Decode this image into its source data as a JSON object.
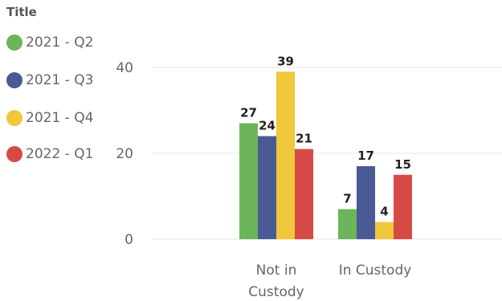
{
  "chart_data": {
    "type": "bar",
    "legend_title": "Title",
    "legend_position": "left",
    "categories": [
      [
        "Not in",
        "Custody"
      ],
      [
        "In Custody"
      ]
    ],
    "series": [
      {
        "name": "2021 - Q2",
        "color": "#6bb55a",
        "values": [
          27,
          7
        ]
      },
      {
        "name": "2021 - Q3",
        "color": "#4a5a94",
        "values": [
          24,
          17
        ]
      },
      {
        "name": "2021 - Q4",
        "color": "#f1c73b",
        "values": [
          39,
          4
        ]
      },
      {
        "name": "2022 - Q1",
        "color": "#d64a45",
        "values": [
          21,
          15
        ]
      }
    ],
    "yticks": [
      0,
      20,
      40
    ],
    "ylim": [
      0,
      45
    ],
    "grid": true
  }
}
